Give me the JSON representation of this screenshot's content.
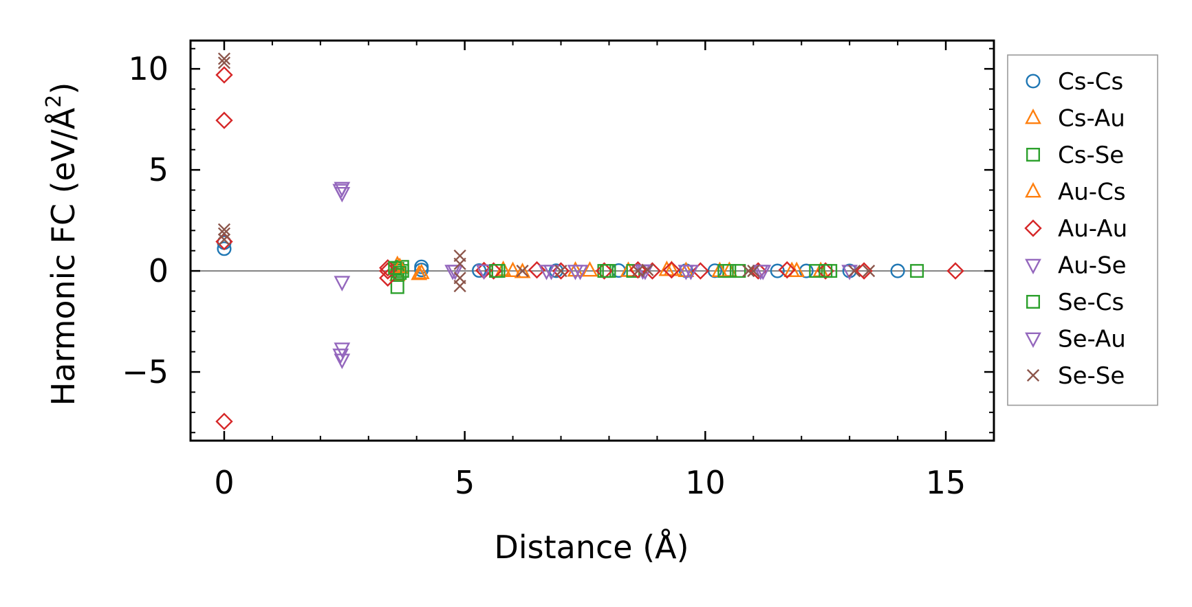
{
  "chart_data": {
    "type": "scatter",
    "xlabel": "Distance (Å)",
    "ylabel_main": "Harmonic FC (eV/Å",
    "ylabel_sup": "2",
    "ylabel_close": ")",
    "xlim": [
      -0.7,
      16.0
    ],
    "ylim": [
      -8.4,
      11.4
    ],
    "xticks": [
      0,
      5,
      10,
      15
    ],
    "xtick_labels": [
      "0",
      "5",
      "10",
      "15"
    ],
    "yticks": [
      -5,
      0,
      5,
      10
    ],
    "ytick_labels": [
      "−5",
      "0",
      "5",
      "10"
    ],
    "grid": false,
    "zero_line": true,
    "legend_position": "outside-right",
    "series": [
      {
        "name": "Cs-Cs",
        "marker": "circle",
        "color": "#1f77b4",
        "x": [
          0,
          0,
          4.1,
          4.1,
          5.3,
          6.9,
          8.2,
          9.6,
          10.2,
          11.5,
          12.1,
          13.0,
          14.0
        ],
        "y": [
          1.1,
          1.4,
          0.2,
          0.05,
          0.02,
          0.01,
          0.02,
          0.01,
          0.01,
          0.0,
          0.0,
          0.0,
          0.0
        ]
      },
      {
        "name": "Cs-Au",
        "marker": "triangle-up",
        "color": "#ff7f0e",
        "x": [
          3.6,
          3.6,
          4.1,
          5.8,
          6.2,
          7.3,
          8.4,
          9.2,
          9.6,
          10.5,
          11.8,
          12.4
        ],
        "y": [
          0.3,
          -0.2,
          -0.1,
          0.05,
          -0.05,
          0.02,
          0.01,
          0.05,
          0.0,
          0.01,
          0.0,
          0.0
        ]
      },
      {
        "name": "Cs-Se",
        "marker": "square",
        "color": "#2ca02c",
        "x": [
          3.6,
          3.6,
          3.6,
          3.6,
          3.7,
          3.7,
          5.7,
          7.9,
          8.0,
          8.5,
          10.5,
          10.7,
          12.3,
          12.6,
          14.4
        ],
        "y": [
          0.1,
          0.0,
          -0.2,
          -0.8,
          0.2,
          0.0,
          0.0,
          0.0,
          0.0,
          0.0,
          0.0,
          0.0,
          0.0,
          0.0,
          0.0
        ]
      },
      {
        "name": "Au-Cs",
        "marker": "triangle-up",
        "color": "#ff7f0e",
        "x": [
          3.65,
          4.05,
          6.0,
          7.6,
          9.3,
          10.3,
          11.9
        ],
        "y": [
          0.2,
          -0.15,
          0.0,
          0.02,
          0.05,
          0.0,
          0.0
        ]
      },
      {
        "name": "Au-Au",
        "marker": "diamond",
        "color": "#d62728",
        "x": [
          0,
          0,
          0,
          0,
          3.4,
          3.4,
          3.4,
          5.4,
          5.6,
          6.5,
          7.0,
          7.9,
          8.6,
          8.9,
          9.3,
          9.9,
          11.1,
          11.7,
          12.5,
          13.3,
          15.2
        ],
        "y": [
          9.7,
          7.45,
          1.45,
          -7.45,
          0.0,
          -0.35,
          0.15,
          0.02,
          0.0,
          0.05,
          0.0,
          0.0,
          0.05,
          0.0,
          0.05,
          0.0,
          0.0,
          0.05,
          0.0,
          0.0,
          0.0
        ]
      },
      {
        "name": "Au-Se",
        "marker": "triangle-down",
        "color": "#9467bd",
        "x": [
          2.45,
          2.45,
          2.45,
          2.45,
          2.45,
          4.75,
          5.4,
          6.8,
          7.4,
          8.7,
          9.6,
          11.2,
          13.0
        ],
        "y": [
          4.1,
          3.85,
          -0.55,
          -3.85,
          -4.4,
          0.0,
          0.02,
          0.0,
          0.0,
          0.02,
          0.0,
          0.0,
          0.0
        ]
      },
      {
        "name": "Se-Cs",
        "marker": "square",
        "color": "#2ca02c",
        "x": [
          3.55,
          3.65,
          5.65,
          7.95,
          10.4,
          12.5
        ],
        "y": [
          0.15,
          -0.1,
          0.0,
          0.0,
          0.0,
          0.0
        ]
      },
      {
        "name": "Se-Au",
        "marker": "triangle-down",
        "color": "#9467bd",
        "x": [
          2.42,
          2.42,
          4.8,
          6.7,
          7.3,
          8.75,
          9.7,
          11.15
        ],
        "y": [
          4.0,
          -4.15,
          0.0,
          0.0,
          0.0,
          0.0,
          0.0,
          0.0
        ]
      },
      {
        "name": "Se-Se",
        "marker": "x",
        "color": "#8c564b",
        "x": [
          0,
          0,
          0,
          0,
          0,
          4.9,
          4.9,
          4.9,
          4.9,
          6.2,
          7.0,
          8.6,
          8.8,
          10.9,
          11.0,
          13.1,
          13.4
        ],
        "y": [
          10.5,
          10.3,
          2.05,
          1.85,
          1.55,
          0.75,
          0.35,
          -0.35,
          -0.75,
          0.0,
          0.0,
          0.0,
          0.05,
          0.0,
          0.0,
          0.0,
          0.0
        ]
      }
    ]
  }
}
